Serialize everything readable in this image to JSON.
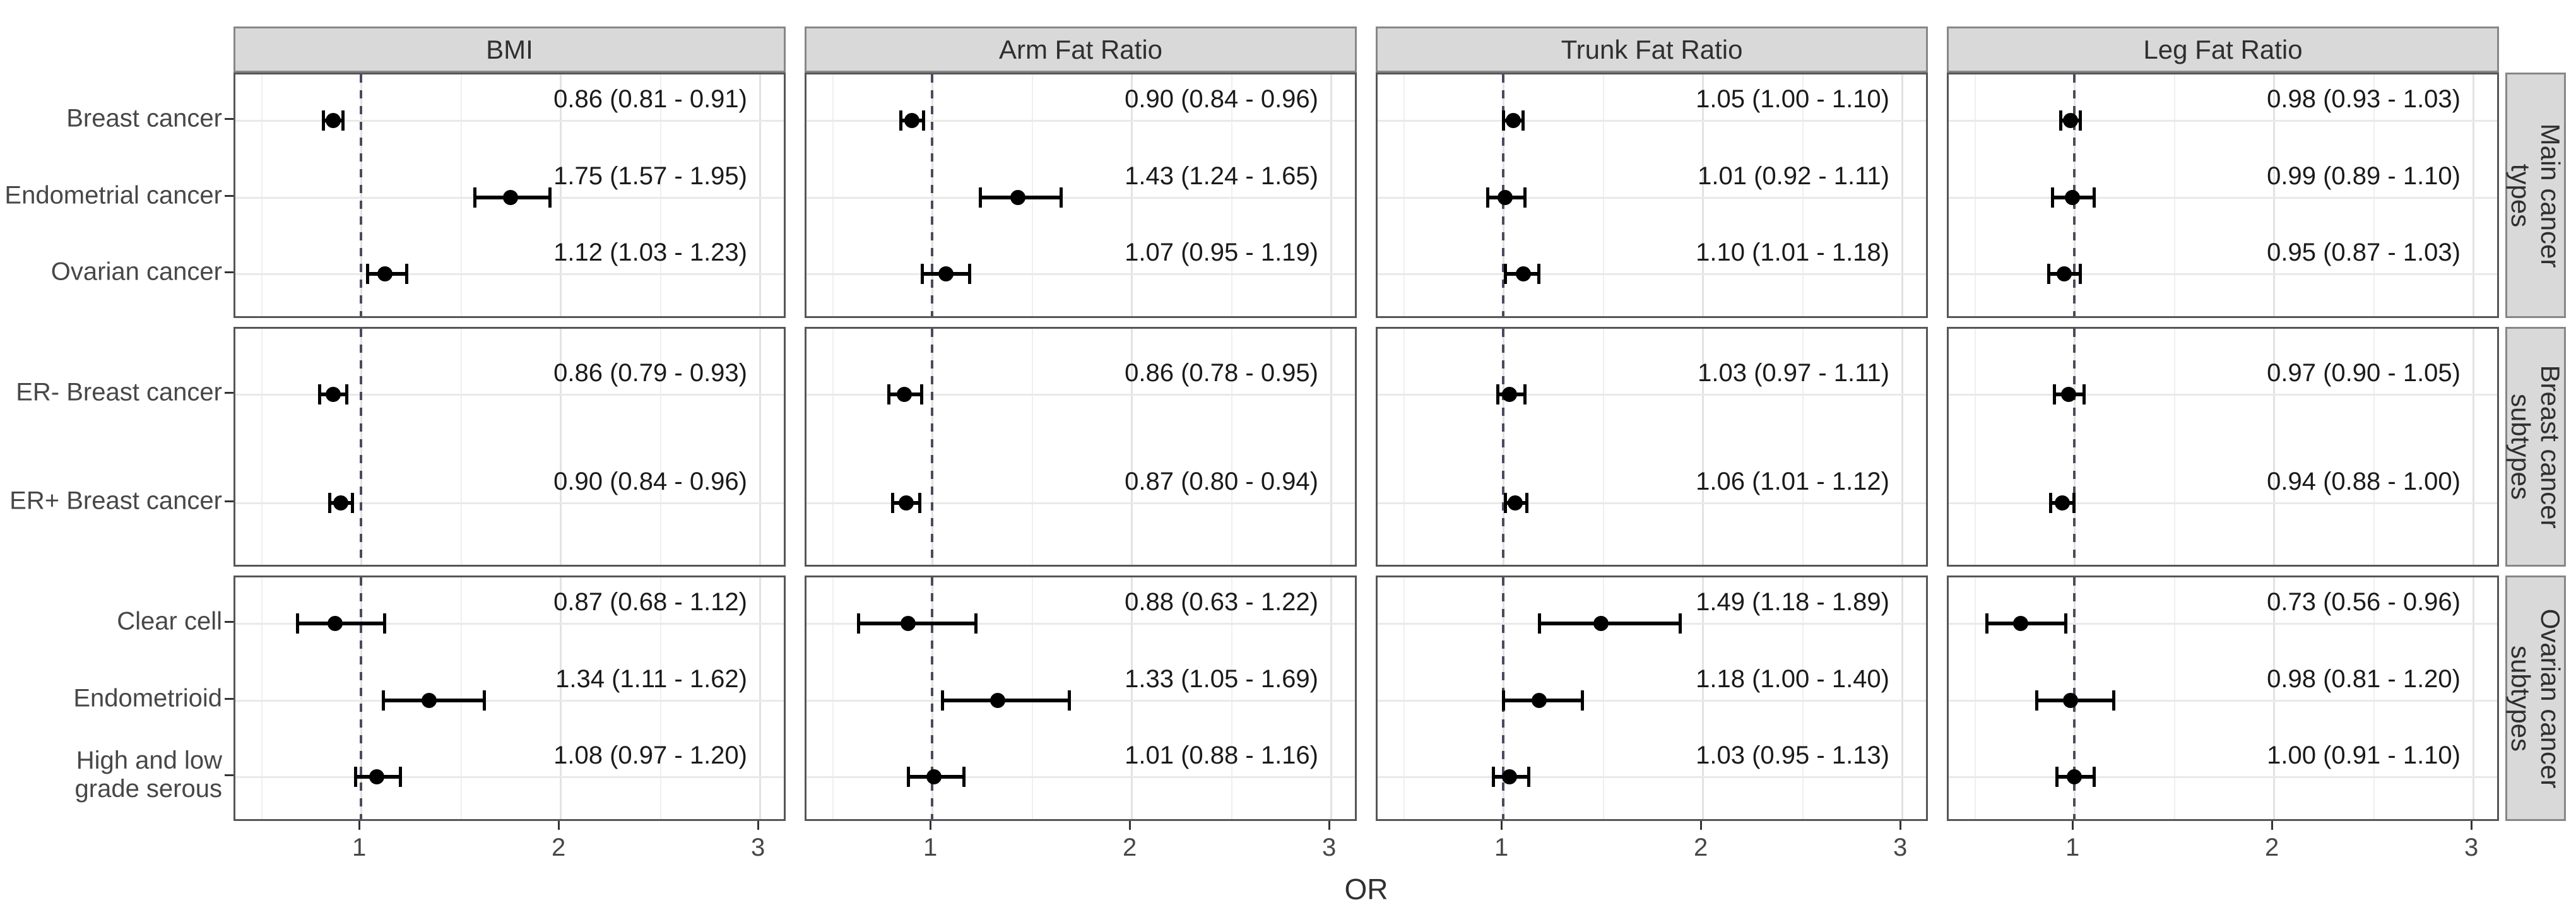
{
  "chart_data": {
    "type": "scatter",
    "variant": "faceted forest plot (odds ratios with 95% CI)",
    "title": "",
    "xlabel": "OR",
    "x_ticks": [
      1,
      2,
      3
    ],
    "x_minor_ticks": [
      0.5,
      1.5,
      2.5
    ],
    "x_range": [
      0.37,
      3.12
    ],
    "reference_line": 1,
    "grid": "on",
    "legend_position": "none",
    "style": {
      "point_color": "#000000",
      "ci_color": "#000000",
      "reference_line_color": "#4a4a5f",
      "strip_background": "#d9d9d9",
      "strip_border": "#878787",
      "panel_border": "#565656",
      "major_grid_color": "#e2e2e2",
      "minor_grid_color": "#efefef",
      "row_grid_color": "#e9e9e9",
      "axis_text_color": "#474747",
      "value_text_color": "#1a1a1a"
    },
    "column_facets": [
      "BMI",
      "Arm Fat Ratio",
      "Trunk Fat Ratio",
      "Leg Fat Ratio"
    ],
    "row_facets": [
      {
        "label": "Main cancer\ntypes",
        "categories": [
          "Breast cancer",
          "Endometrial cancer",
          "Ovarian cancer"
        ],
        "series": [
          {
            "facet": "BMI",
            "points": [
              {
                "category": "Breast cancer",
                "or": 0.86,
                "ci_low": 0.81,
                "ci_high": 0.91,
                "label": "0.86 (0.81 - 0.91)"
              },
              {
                "category": "Endometrial cancer",
                "or": 1.75,
                "ci_low": 1.57,
                "ci_high": 1.95,
                "label": "1.75 (1.57 - 1.95)"
              },
              {
                "category": "Ovarian cancer",
                "or": 1.12,
                "ci_low": 1.03,
                "ci_high": 1.23,
                "label": "1.12 (1.03 - 1.23)"
              }
            ]
          },
          {
            "facet": "Arm Fat Ratio",
            "points": [
              {
                "category": "Breast cancer",
                "or": 0.9,
                "ci_low": 0.84,
                "ci_high": 0.96,
                "label": "0.90 (0.84 - 0.96)"
              },
              {
                "category": "Endometrial cancer",
                "or": 1.43,
                "ci_low": 1.24,
                "ci_high": 1.65,
                "label": "1.43 (1.24 - 1.65)"
              },
              {
                "category": "Ovarian cancer",
                "or": 1.07,
                "ci_low": 0.95,
                "ci_high": 1.19,
                "label": "1.07 (0.95 - 1.19)"
              }
            ]
          },
          {
            "facet": "Trunk Fat Ratio",
            "points": [
              {
                "category": "Breast cancer",
                "or": 1.05,
                "ci_low": 1.0,
                "ci_high": 1.1,
                "label": "1.05 (1.00 - 1.10)"
              },
              {
                "category": "Endometrial cancer",
                "or": 1.01,
                "ci_low": 0.92,
                "ci_high": 1.11,
                "label": "1.01 (0.92 - 1.11)"
              },
              {
                "category": "Ovarian cancer",
                "or": 1.1,
                "ci_low": 1.01,
                "ci_high": 1.18,
                "label": "1.10 (1.01 - 1.18)"
              }
            ]
          },
          {
            "facet": "Leg Fat Ratio",
            "points": [
              {
                "category": "Breast cancer",
                "or": 0.98,
                "ci_low": 0.93,
                "ci_high": 1.03,
                "label": "0.98 (0.93 - 1.03)"
              },
              {
                "category": "Endometrial cancer",
                "or": 0.99,
                "ci_low": 0.89,
                "ci_high": 1.1,
                "label": "0.99 (0.89 - 1.10)"
              },
              {
                "category": "Ovarian cancer",
                "or": 0.95,
                "ci_low": 0.87,
                "ci_high": 1.03,
                "label": "0.95 (0.87 - 1.03)"
              }
            ]
          }
        ]
      },
      {
        "label": "Breast cancer\nsubtypes",
        "categories": [
          "ER- Breast cancer",
          "ER+ Breast cancer"
        ],
        "series": [
          {
            "facet": "BMI",
            "points": [
              {
                "category": "ER- Breast cancer",
                "or": 0.86,
                "ci_low": 0.79,
                "ci_high": 0.93,
                "label": "0.86 (0.79 - 0.93)"
              },
              {
                "category": "ER+ Breast cancer",
                "or": 0.9,
                "ci_low": 0.84,
                "ci_high": 0.96,
                "label": "0.90 (0.84 - 0.96)"
              }
            ]
          },
          {
            "facet": "Arm Fat Ratio",
            "points": [
              {
                "category": "ER- Breast cancer",
                "or": 0.86,
                "ci_low": 0.78,
                "ci_high": 0.95,
                "label": "0.86 (0.78 - 0.95)"
              },
              {
                "category": "ER+ Breast cancer",
                "or": 0.87,
                "ci_low": 0.8,
                "ci_high": 0.94,
                "label": "0.87 (0.80 - 0.94)"
              }
            ]
          },
          {
            "facet": "Trunk Fat Ratio",
            "points": [
              {
                "category": "ER- Breast cancer",
                "or": 1.03,
                "ci_low": 0.97,
                "ci_high": 1.11,
                "label": "1.03 (0.97 - 1.11)"
              },
              {
                "category": "ER+ Breast cancer",
                "or": 1.06,
                "ci_low": 1.01,
                "ci_high": 1.12,
                "label": "1.06 (1.01 - 1.12)"
              }
            ]
          },
          {
            "facet": "Leg Fat Ratio",
            "points": [
              {
                "category": "ER- Breast cancer",
                "or": 0.97,
                "ci_low": 0.9,
                "ci_high": 1.05,
                "label": "0.97 (0.90 - 1.05)"
              },
              {
                "category": "ER+ Breast cancer",
                "or": 0.94,
                "ci_low": 0.88,
                "ci_high": 1.0,
                "label": "0.94 (0.88 - 1.00)"
              }
            ]
          }
        ]
      },
      {
        "label": "Ovarian cancer\nsubtypes",
        "categories": [
          "Clear cell",
          "Endometrioid",
          "High and low\ngrade serous"
        ],
        "series": [
          {
            "facet": "BMI",
            "points": [
              {
                "category": "Clear cell",
                "or": 0.87,
                "ci_low": 0.68,
                "ci_high": 1.12,
                "label": "0.87 (0.68 - 1.12)"
              },
              {
                "category": "Endometrioid",
                "or": 1.34,
                "ci_low": 1.11,
                "ci_high": 1.62,
                "label": "1.34 (1.11 - 1.62)"
              },
              {
                "category": "High and low grade serous",
                "or": 1.08,
                "ci_low": 0.97,
                "ci_high": 1.2,
                "label": "1.08 (0.97 - 1.20)"
              }
            ]
          },
          {
            "facet": "Arm Fat Ratio",
            "points": [
              {
                "category": "Clear cell",
                "or": 0.88,
                "ci_low": 0.63,
                "ci_high": 1.22,
                "label": "0.88 (0.63 - 1.22)"
              },
              {
                "category": "Endometrioid",
                "or": 1.33,
                "ci_low": 1.05,
                "ci_high": 1.69,
                "label": "1.33 (1.05 - 1.69)"
              },
              {
                "category": "High and low grade serous",
                "or": 1.01,
                "ci_low": 0.88,
                "ci_high": 1.16,
                "label": "1.01 (0.88 - 1.16)"
              }
            ]
          },
          {
            "facet": "Trunk Fat Ratio",
            "points": [
              {
                "category": "Clear cell",
                "or": 1.49,
                "ci_low": 1.18,
                "ci_high": 1.89,
                "label": "1.49 (1.18 - 1.89)"
              },
              {
                "category": "Endometrioid",
                "or": 1.18,
                "ci_low": 1.0,
                "ci_high": 1.4,
                "label": "1.18 (1.00 - 1.40)"
              },
              {
                "category": "High and low grade serous",
                "or": 1.03,
                "ci_low": 0.95,
                "ci_high": 1.13,
                "label": "1.03 (0.95 - 1.13)"
              }
            ]
          },
          {
            "facet": "Leg Fat Ratio",
            "points": [
              {
                "category": "Clear cell",
                "or": 0.73,
                "ci_low": 0.56,
                "ci_high": 0.96,
                "label": "0.73 (0.56 - 0.96)"
              },
              {
                "category": "Endometrioid",
                "or": 0.98,
                "ci_low": 0.81,
                "ci_high": 1.2,
                "label": "0.98 (0.81 - 1.20)"
              },
              {
                "category": "High and low grade serous",
                "or": 1.0,
                "ci_low": 0.91,
                "ci_high": 1.1,
                "label": "1.00 (0.91 - 1.10)"
              }
            ]
          }
        ]
      }
    ]
  }
}
